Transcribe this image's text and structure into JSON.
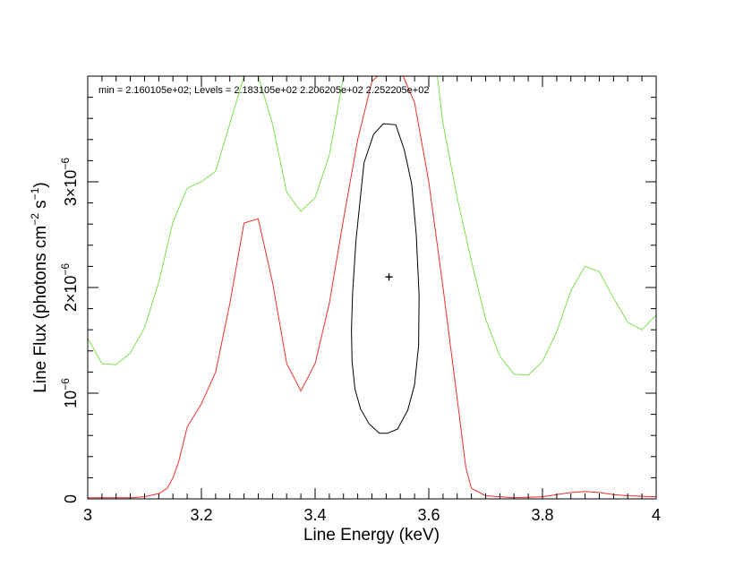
{
  "chart_data": {
    "type": "line",
    "title": "",
    "xlabel": "Line Energy (keV)",
    "ylabel_prefix": "Line Flux (photons cm",
    "ylabel_sup1": "−2",
    "ylabel_mid": " s",
    "ylabel_sup2": "−1",
    "ylabel_suffix": ")",
    "xlim": [
      3.0,
      4.0
    ],
    "ylim": [
      0,
      4e-06
    ],
    "annotation": "min = 2.160105e+02; Levels =  2.183105e+02 2.206205e+02 2.252205e+02",
    "x_ticks": [
      {
        "value": 3.0,
        "label": "3"
      },
      {
        "value": 3.2,
        "label": "3.2"
      },
      {
        "value": 3.4,
        "label": "3.4"
      },
      {
        "value": 3.6,
        "label": "3.6"
      },
      {
        "value": 3.8,
        "label": "3.8"
      },
      {
        "value": 4.0,
        "label": "4"
      }
    ],
    "y_ticks": [
      {
        "value": 0,
        "label": "0",
        "base": "0",
        "sup": ""
      },
      {
        "value": 1e-06,
        "label": "10−6",
        "base": "10",
        "sup": "−6"
      },
      {
        "value": 2e-06,
        "label": "2×10−6",
        "base": "2×10",
        "sup": "−6"
      },
      {
        "value": 3e-06,
        "label": "3×10−6",
        "base": "3×10",
        "sup": "−6"
      }
    ],
    "best_fit": {
      "x": 3.53,
      "y": 2.1e-06
    },
    "colors": {
      "green": "#7fe050",
      "red": "#ee3030",
      "black": "#000000"
    },
    "series": [
      {
        "color": "green",
        "points": [
          [
            3.0,
            1.52e-06
          ],
          [
            3.025,
            1.28e-06
          ],
          [
            3.05,
            1.27e-06
          ],
          [
            3.075,
            1.38e-06
          ],
          [
            3.1,
            1.62e-06
          ],
          [
            3.125,
            2.05e-06
          ],
          [
            3.15,
            2.62e-06
          ],
          [
            3.175,
            2.94e-06
          ],
          [
            3.2,
            3e-06
          ],
          [
            3.225,
            3.1e-06
          ],
          [
            3.25,
            3.55e-06
          ],
          [
            3.275,
            4e-06
          ],
          [
            3.3,
            4e-06
          ],
          [
            3.325,
            3.55e-06
          ],
          [
            3.35,
            2.9e-06
          ],
          [
            3.375,
            2.72e-06
          ],
          [
            3.4,
            2.85e-06
          ],
          [
            3.425,
            3.25e-06
          ],
          [
            3.45,
            4e-06
          ]
        ]
      },
      {
        "color": "green",
        "points": [
          [
            3.615,
            4e-06
          ],
          [
            3.625,
            3.55e-06
          ],
          [
            3.65,
            2.85e-06
          ],
          [
            3.675,
            2.25e-06
          ],
          [
            3.7,
            1.7e-06
          ],
          [
            3.725,
            1.35e-06
          ],
          [
            3.75,
            1.18e-06
          ],
          [
            3.775,
            1.17e-06
          ],
          [
            3.8,
            1.3e-06
          ],
          [
            3.825,
            1.58e-06
          ],
          [
            3.85,
            1.97e-06
          ],
          [
            3.875,
            2.2e-06
          ],
          [
            3.9,
            2.15e-06
          ],
          [
            3.925,
            1.9e-06
          ],
          [
            3.95,
            1.67e-06
          ],
          [
            3.975,
            1.6e-06
          ],
          [
            4.0,
            1.74e-06
          ]
        ]
      },
      {
        "color": "red",
        "points": [
          [
            3.0,
            1e-08
          ],
          [
            3.025,
            1e-08
          ],
          [
            3.05,
            1e-08
          ],
          [
            3.075,
            1e-08
          ],
          [
            3.1,
            2e-08
          ],
          [
            3.125,
            5e-08
          ],
          [
            3.14,
            1e-07
          ],
          [
            3.15,
            2e-07
          ],
          [
            3.16,
            3.5e-07
          ],
          [
            3.175,
            6.8e-07
          ],
          [
            3.2,
            9e-07
          ],
          [
            3.225,
            1.2e-06
          ],
          [
            3.25,
            1.85e-06
          ],
          [
            3.275,
            2.61e-06
          ],
          [
            3.3,
            2.65e-06
          ],
          [
            3.325,
            2.05e-06
          ],
          [
            3.35,
            1.28e-06
          ],
          [
            3.375,
            1.02e-06
          ],
          [
            3.4,
            1.28e-06
          ],
          [
            3.425,
            1.85e-06
          ],
          [
            3.45,
            2.65e-06
          ],
          [
            3.475,
            3.4e-06
          ],
          [
            3.5,
            3.95e-06
          ],
          [
            3.51,
            4e-06
          ]
        ]
      },
      {
        "color": "red",
        "points": [
          [
            3.555,
            4e-06
          ],
          [
            3.575,
            3.75e-06
          ],
          [
            3.6,
            3e-06
          ],
          [
            3.625,
            2e-06
          ],
          [
            3.65,
            9.5e-07
          ],
          [
            3.665,
            3e-07
          ],
          [
            3.675,
            1e-07
          ],
          [
            3.7,
            3e-08
          ],
          [
            3.75,
            1e-08
          ],
          [
            3.8,
            2e-08
          ],
          [
            3.825,
            4e-08
          ],
          [
            3.85,
            6e-08
          ],
          [
            3.875,
            7e-08
          ],
          [
            3.9,
            6e-08
          ],
          [
            3.925,
            4e-08
          ],
          [
            3.95,
            3e-08
          ],
          [
            4.0,
            2e-08
          ]
        ]
      },
      {
        "color": "black",
        "closed": true,
        "points": [
          [
            3.52,
            3.55e-06
          ],
          [
            3.542,
            3.54e-06
          ],
          [
            3.557,
            3.3e-06
          ],
          [
            3.57,
            2.98e-06
          ],
          [
            3.578,
            2.5e-06
          ],
          [
            3.583,
            1.92e-06
          ],
          [
            3.582,
            1.45e-06
          ],
          [
            3.575,
            1.08e-06
          ],
          [
            3.563,
            8.4e-07
          ],
          [
            3.545,
            6.6e-07
          ],
          [
            3.527,
            6.2e-07
          ],
          [
            3.513,
            6.2e-07
          ],
          [
            3.495,
            7.1e-07
          ],
          [
            3.48,
            8.5e-07
          ],
          [
            3.47,
            1.04e-06
          ],
          [
            3.465,
            1.3e-06
          ],
          [
            3.464,
            1.6e-06
          ],
          [
            3.466,
            1.95e-06
          ],
          [
            3.472,
            2.45e-06
          ],
          [
            3.486,
            3.18e-06
          ],
          [
            3.503,
            3.45e-06
          ]
        ]
      }
    ]
  }
}
